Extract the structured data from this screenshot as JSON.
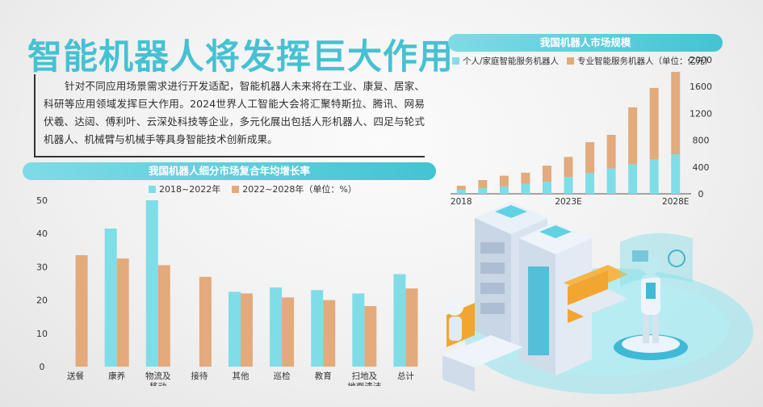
{
  "title": "智能机器人将发挥巨大作用",
  "intro": "针对不同应用场景需求进行开发适配，智能机器人未来将在工业、康复、居家、科研等应用领域发挥巨大作用。2024世界人工智能大会将汇聚特斯拉、腾讯、网易伏羲、达闼、傅利叶、云深处科技等企业，多元化展出包括人形机器人、四足与轮式机器人、机械臂与机械手等具身智能技术创新成果。",
  "colors": {
    "accent": "#46c1d3",
    "cyan": "#7fdde8",
    "tan": "#e3aa7c"
  },
  "chart_data": [
    {
      "type": "bar",
      "title": "我国机器人细分市场复合年均增长率",
      "unit_note": "（单位：%）",
      "categories": [
        "送餐",
        "康养",
        "物流及\n移动",
        "接待",
        "其他",
        "巡检",
        "教育",
        "扫地及\n地面清洁",
        "总计"
      ],
      "series": [
        {
          "name": "2018~2022年",
          "color": "#7fdde8",
          "values": [
            null,
            41.5,
            50,
            null,
            22.5,
            23.8,
            23,
            22,
            27.8
          ]
        },
        {
          "name": "2022~2028年",
          "color": "#e3aa7c",
          "values": [
            33.5,
            32.5,
            30.5,
            27,
            22,
            20.8,
            20,
            18.2,
            23.5
          ]
        }
      ],
      "ylim": [
        0,
        50
      ],
      "yticks": [
        0,
        10,
        20,
        30,
        40,
        50
      ],
      "grid": false,
      "legend": "top"
    },
    {
      "type": "bar",
      "stacked": true,
      "title": "我国机器人市场规模",
      "unit_note": "（单位：亿元）",
      "x": [
        "2018",
        "2019",
        "2020",
        "2021",
        "2022",
        "2023E",
        "2024E",
        "2025E",
        "2026E",
        "2027E",
        "2028E"
      ],
      "xtick_labels": [
        "2018",
        "2023E",
        "2028E"
      ],
      "series": [
        {
          "name": "个人/家庭智能服务机器人",
          "color": "#7fdde8",
          "values": [
            60,
            85,
            110,
            150,
            180,
            250,
            310,
            380,
            440,
            510,
            590
          ]
        },
        {
          "name": "专业智能服务机器人",
          "color": "#e3aa7c",
          "values": [
            60,
            120,
            160,
            165,
            240,
            300,
            460,
            500,
            850,
            1070,
            1230
          ]
        }
      ],
      "ylim": [
        0,
        2000
      ],
      "yticks": [
        0,
        400,
        800,
        1200,
        1600,
        2000
      ],
      "yaxis_side": "right",
      "grid": false,
      "legend": "top-left"
    }
  ]
}
